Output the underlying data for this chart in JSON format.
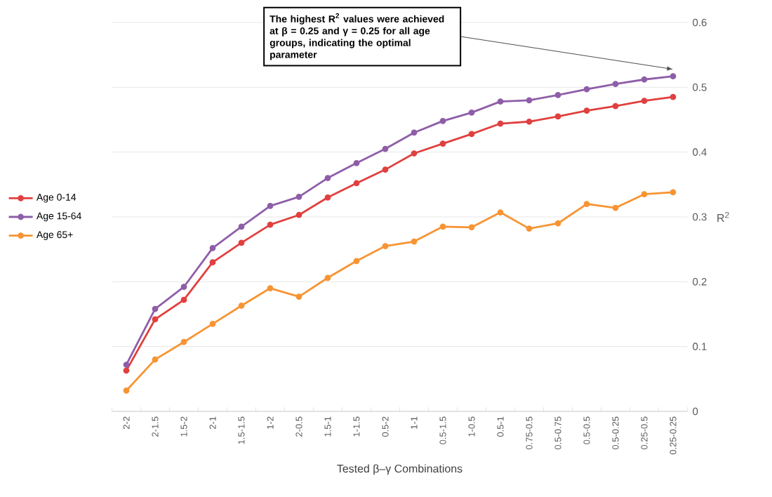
{
  "chart_data": {
    "type": "line",
    "xlabel": "Tested β–γ Combinations",
    "ylabel": "R$^{2}$",
    "categories": [
      "2-2",
      "2-1.5",
      "1.5-2",
      "2-1",
      "1.5-1.5",
      "1-2",
      "2-0.5",
      "1.5-1",
      "1-1.5",
      "0.5-2",
      "1-1",
      "0.5-1.5",
      "1-0.5",
      "0.5-1",
      "0.75-0.5",
      "0.5-0.75",
      "0.5-0.5",
      "0.5-0.25",
      "0.25-0.5",
      "0.25-0.25"
    ],
    "series": [
      {
        "name": "Age 0-14",
        "color": "#e0403f",
        "values": [
          0.063,
          0.142,
          0.172,
          0.23,
          0.26,
          0.288,
          0.303,
          0.33,
          0.352,
          0.373,
          0.398,
          0.413,
          0.428,
          0.444,
          0.447,
          0.455,
          0.464,
          0.471,
          0.479,
          0.485
        ]
      },
      {
        "name": "Age 15-64",
        "color": "#8e5ea8",
        "values": [
          0.072,
          0.158,
          0.192,
          0.252,
          0.285,
          0.317,
          0.331,
          0.36,
          0.383,
          0.405,
          0.43,
          0.448,
          0.461,
          0.478,
          0.48,
          0.488,
          0.497,
          0.505,
          0.512,
          0.517
        ]
      },
      {
        "name": "Age 65+",
        "color": "#f79433",
        "values": [
          0.032,
          0.08,
          0.107,
          0.135,
          0.163,
          0.19,
          0.177,
          0.206,
          0.232,
          0.255,
          0.262,
          0.285,
          0.284,
          0.307,
          0.282,
          0.29,
          0.32,
          0.314,
          0.335,
          0.338
        ]
      }
    ],
    "annotations": [
      "The highest R$^{2}$ values were achieved at β = 0.25 and γ = 0.25 for all age groups, indicating the optimal parameter"
    ],
    "ylim": [
      0,
      0.6
    ],
    "yticks": [
      0,
      0.1,
      0.2,
      0.3,
      0.4,
      0.5,
      0.6
    ],
    "grid": "y",
    "legend": "left",
    "marker": "circle",
    "line_style": "solid"
  }
}
